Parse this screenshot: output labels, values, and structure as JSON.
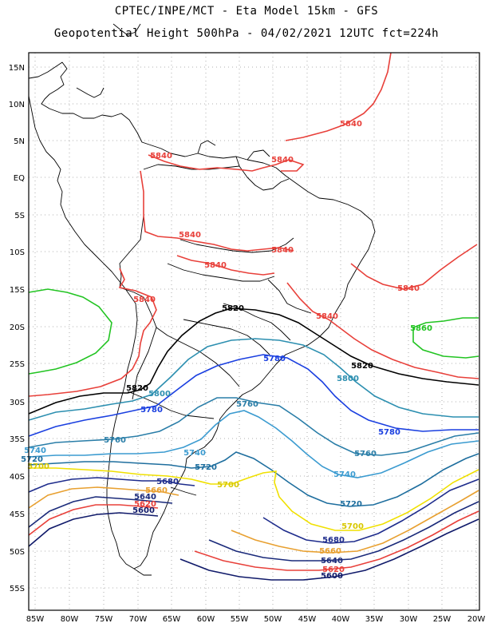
{
  "title_line1": "CPTEC/INPE/MCT -  Eta Model 15km - GFS",
  "title_line2": "Geopotential Height 500hPa - 04/02/2021 12UTC fct=224h",
  "lat_labels": [
    "15N",
    "10N",
    "5N",
    "EQ",
    "5S",
    "10S",
    "15S",
    "20S",
    "25S",
    "30S",
    "35S",
    "40S",
    "45S",
    "50S",
    "55S"
  ],
  "lon_labels": [
    "85W",
    "80W",
    "75W",
    "70W",
    "65W",
    "60W",
    "55W",
    "50W",
    "45W",
    "40W",
    "35W",
    "30W",
    "25W",
    "20W"
  ],
  "contour_colors": {
    "5840": "#e8403a",
    "5820_north": "#000000",
    "5860": "#22c422",
    "5800": "#2c8fb0",
    "5780": "#1a3fe0",
    "5760": "#2a7ea8",
    "5740": "#3b9bd0",
    "5720": "#1e6e9e",
    "5700": "#f0e000",
    "5680": "#1e2c8c",
    "5660": "#e8a030",
    "5640": "#1a2a7a",
    "5620": "#e8403a",
    "5600": "#101a6a"
  },
  "contour_labels": [
    {
      "text": "5840",
      "color": "#e8403a"
    },
    {
      "text": "5840",
      "color": "#e8403a"
    },
    {
      "text": "5840",
      "color": "#e8403a"
    },
    {
      "text": "5840",
      "color": "#e8403a"
    },
    {
      "text": "5840",
      "color": "#e8403a"
    },
    {
      "text": "5840",
      "color": "#e8403a"
    },
    {
      "text": "5840",
      "color": "#e8403a"
    },
    {
      "text": "5840",
      "color": "#e8403a"
    },
    {
      "text": "5840",
      "color": "#e8403a"
    },
    {
      "text": "5820",
      "color": "#000000"
    },
    {
      "text": "5820",
      "color": "#000000"
    },
    {
      "text": "5820",
      "color": "#000000"
    },
    {
      "text": "5860",
      "color": "#22c422"
    },
    {
      "text": "5800",
      "color": "#2c8fb0"
    },
    {
      "text": "5800",
      "color": "#2c8fb0"
    },
    {
      "text": "5780",
      "color": "#1a3fe0"
    },
    {
      "text": "5780",
      "color": "#1a3fe0"
    },
    {
      "text": "5780",
      "color": "#1a3fe0"
    },
    {
      "text": "5760",
      "color": "#2a7ea8"
    },
    {
      "text": "5760",
      "color": "#2a7ea8"
    },
    {
      "text": "5760",
      "color": "#2a7ea8"
    },
    {
      "text": "5740",
      "color": "#3b9bd0"
    },
    {
      "text": "5740",
      "color": "#3b9bd0"
    },
    {
      "text": "5740",
      "color": "#3b9bd0"
    },
    {
      "text": "5720",
      "color": "#1e6e9e"
    },
    {
      "text": "5720",
      "color": "#1e6e9e"
    },
    {
      "text": "5720",
      "color": "#1e6e9e"
    },
    {
      "text": "5700",
      "color": "#d8c800"
    },
    {
      "text": "5700",
      "color": "#d8c800"
    },
    {
      "text": "5700",
      "color": "#d8c800"
    },
    {
      "text": "5680",
      "color": "#1e2c8c"
    },
    {
      "text": "5680",
      "color": "#1e2c8c"
    },
    {
      "text": "5660",
      "color": "#e8a030"
    },
    {
      "text": "5660",
      "color": "#e8a030"
    },
    {
      "text": "5640",
      "color": "#1a2a7a"
    },
    {
      "text": "5640",
      "color": "#1a2a7a"
    },
    {
      "text": "5620",
      "color": "#e8403a"
    },
    {
      "text": "5620",
      "color": "#e8403a"
    },
    {
      "text": "5600",
      "color": "#101a6a"
    },
    {
      "text": "5600",
      "color": "#101a6a"
    }
  ]
}
